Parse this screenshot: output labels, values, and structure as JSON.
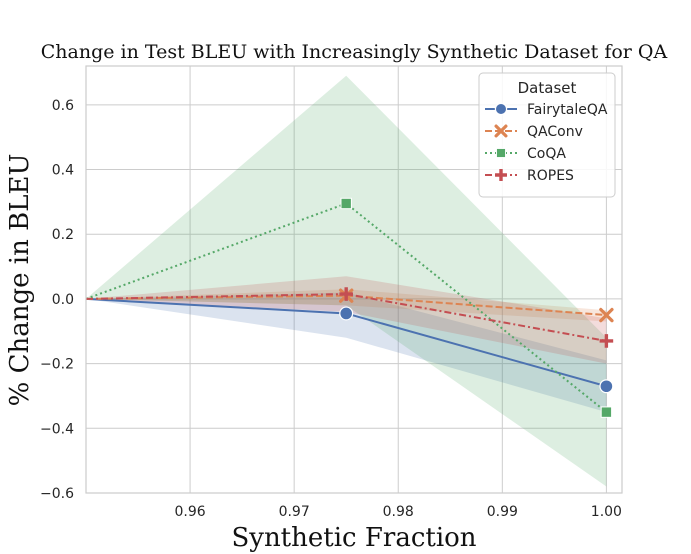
{
  "chart_data": {
    "type": "line",
    "title": "Change in Test BLEU with Increasingly Synthetic Dataset for QA",
    "xlabel": "Synthetic Fraction",
    "ylabel": "% Change in BLEU",
    "xlim": [
      0.95,
      1.0015
    ],
    "ylim": [
      -0.6,
      0.72
    ],
    "xticks": [
      0.96,
      0.97,
      0.98,
      0.99,
      1.0
    ],
    "xtick_labels": [
      "0.96",
      "0.97",
      "0.98",
      "0.99",
      "1.00"
    ],
    "yticks": [
      -0.6,
      -0.4,
      -0.2,
      0.0,
      0.2,
      0.4,
      0.6
    ],
    "ytick_labels": [
      "−0.6",
      "−0.4",
      "−0.2",
      "0.0",
      "0.2",
      "0.4",
      "0.6"
    ],
    "grid": true,
    "legend": {
      "title": "Dataset",
      "placement": "top-right"
    },
    "series": [
      {
        "name": "FairytaleQA",
        "color": "#4c72b0",
        "dash": "solid",
        "marker": "circle",
        "x": [
          0.95,
          0.975,
          1.0
        ],
        "y": [
          0.0,
          -0.045,
          -0.27
        ],
        "ci_low": [
          0.0,
          -0.12,
          -0.35
        ],
        "ci_high": [
          0.0,
          0.02,
          -0.19
        ]
      },
      {
        "name": "QAConv",
        "color": "#dd8452",
        "dash": "dashed",
        "marker": "x",
        "x": [
          0.95,
          0.975,
          1.0
        ],
        "y": [
          0.0,
          0.01,
          -0.05
        ],
        "ci_low": [
          0.0,
          -0.02,
          -0.07
        ],
        "ci_high": [
          0.0,
          0.03,
          -0.035
        ]
      },
      {
        "name": "CoQA",
        "color": "#55a868",
        "dash": "dotted",
        "marker": "square",
        "x": [
          0.95,
          0.975,
          1.0
        ],
        "y": [
          0.0,
          0.295,
          -0.35
        ],
        "ci_low": [
          0.0,
          -0.02,
          -0.58
        ],
        "ci_high": [
          0.0,
          0.69,
          -0.12
        ]
      },
      {
        "name": "ROPES",
        "color": "#c44e52",
        "dash": "dashdot",
        "marker": "plus",
        "x": [
          0.95,
          0.975,
          1.0
        ],
        "y": [
          0.0,
          0.015,
          -0.13
        ],
        "ci_low": [
          0.0,
          -0.04,
          -0.2
        ],
        "ci_high": [
          0.0,
          0.07,
          -0.06
        ]
      }
    ]
  }
}
